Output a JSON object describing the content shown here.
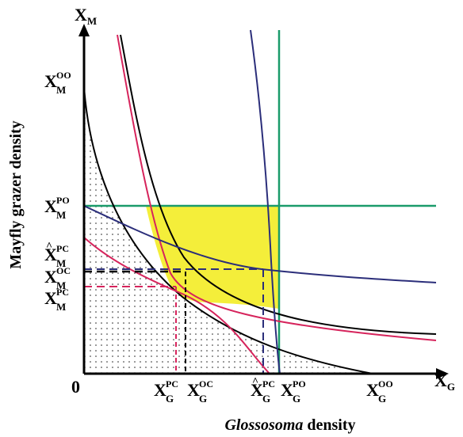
{
  "figure": {
    "x_axis_title_italic": "Glossosoma",
    "x_axis_title_rest": " density",
    "y_axis_title": "Mayfly grazer density",
    "origin_label": "0",
    "x_axis_end": {
      "main": "X",
      "sub": "G"
    },
    "y_axis_end": {
      "main": "X",
      "sub": "M"
    },
    "y_labels": [
      {
        "main": "X",
        "sub": "M",
        "sup": "OO",
        "hat": false
      },
      {
        "main": "X",
        "sub": "M",
        "sup": "PO",
        "hat": false
      },
      {
        "main": "X",
        "sub": "M",
        "sup": "PC",
        "hat": true
      },
      {
        "main": "X",
        "sub": "M",
        "sup": "OC",
        "hat": false
      },
      {
        "main": "X",
        "sub": "M",
        "sup": "PC",
        "hat": false
      }
    ],
    "x_labels": [
      {
        "main": "X",
        "sub": "G",
        "sup": "PC",
        "hat": false
      },
      {
        "main": "X",
        "sub": "G",
        "sup": "OC",
        "hat": false
      },
      {
        "main": "X",
        "sub": "G",
        "sup": "PC",
        "hat": true
      },
      {
        "main": "X",
        "sub": "G",
        "sup": "PO",
        "hat": false
      },
      {
        "main": "X",
        "sub": "G",
        "sup": "OO",
        "hat": false
      }
    ],
    "colors": {
      "black": "#000000",
      "red": "#d6245c",
      "blue": "#2b2e7a",
      "green": "#1a9b6a",
      "yellow": "#f4ee3a",
      "dots": "#222222"
    }
  }
}
